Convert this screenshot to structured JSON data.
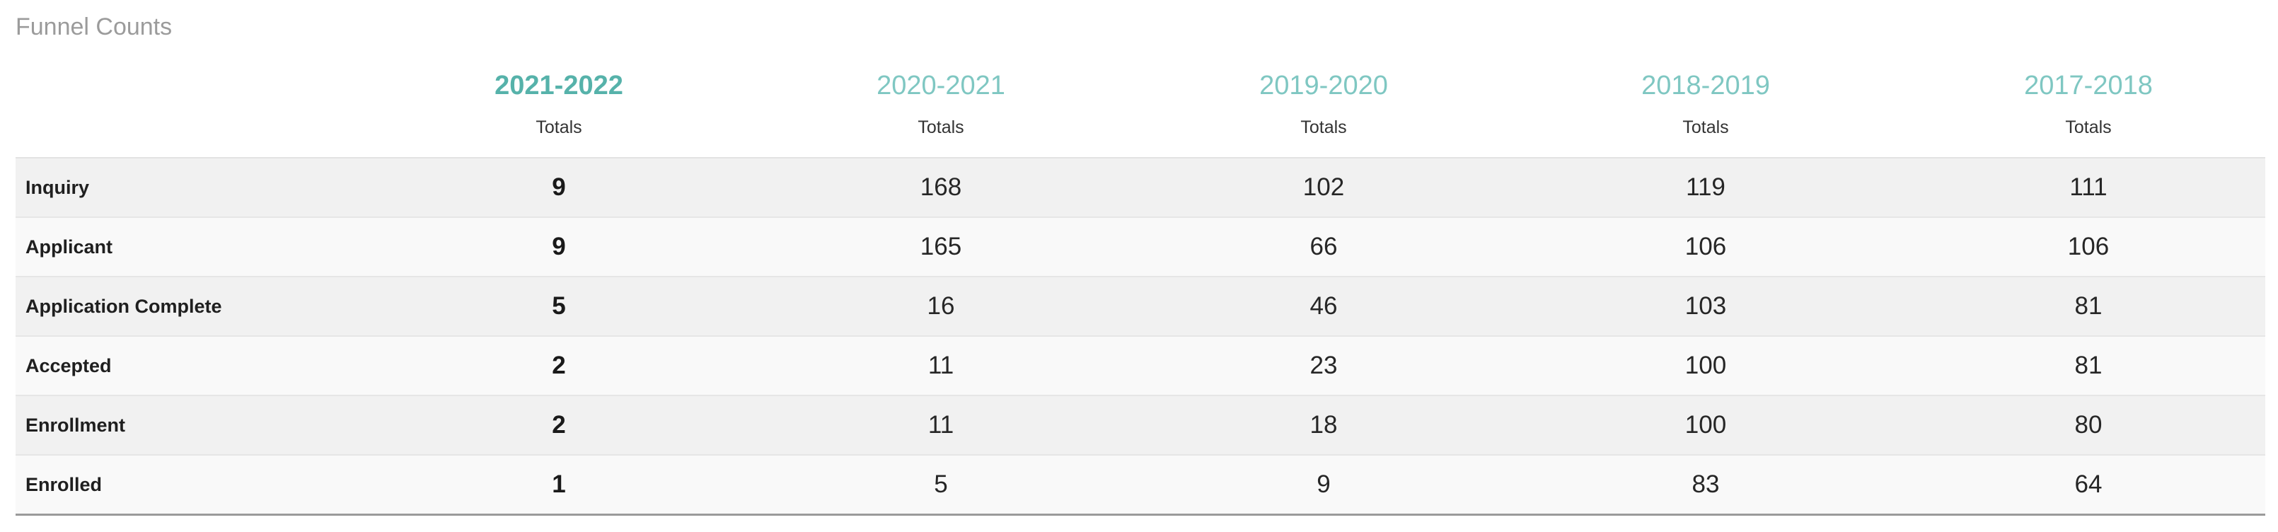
{
  "title": "Funnel Counts",
  "columns": [
    {
      "year": "2021-2022",
      "sub": "Totals"
    },
    {
      "year": "2020-2021",
      "sub": "Totals"
    },
    {
      "year": "2019-2020",
      "sub": "Totals"
    },
    {
      "year": "2018-2019",
      "sub": "Totals"
    },
    {
      "year": "2017-2018",
      "sub": "Totals"
    }
  ],
  "rows": [
    {
      "label": "Inquiry",
      "values": [
        "9",
        "168",
        "102",
        "119",
        "111"
      ]
    },
    {
      "label": "Applicant",
      "values": [
        "9",
        "165",
        "66",
        "106",
        "106"
      ]
    },
    {
      "label": "Application Complete",
      "values": [
        "5",
        "16",
        "46",
        "103",
        "81"
      ]
    },
    {
      "label": "Accepted",
      "values": [
        "2",
        "11",
        "23",
        "100",
        "81"
      ]
    },
    {
      "label": "Enrollment",
      "values": [
        "2",
        "11",
        "18",
        "100",
        "80"
      ]
    },
    {
      "label": "Enrolled",
      "values": [
        "1",
        "5",
        "9",
        "83",
        "64"
      ]
    }
  ],
  "colors": {
    "current_year": "#56b2aa",
    "other_years": "#7fc7c2",
    "title": "#9b9b9b"
  }
}
